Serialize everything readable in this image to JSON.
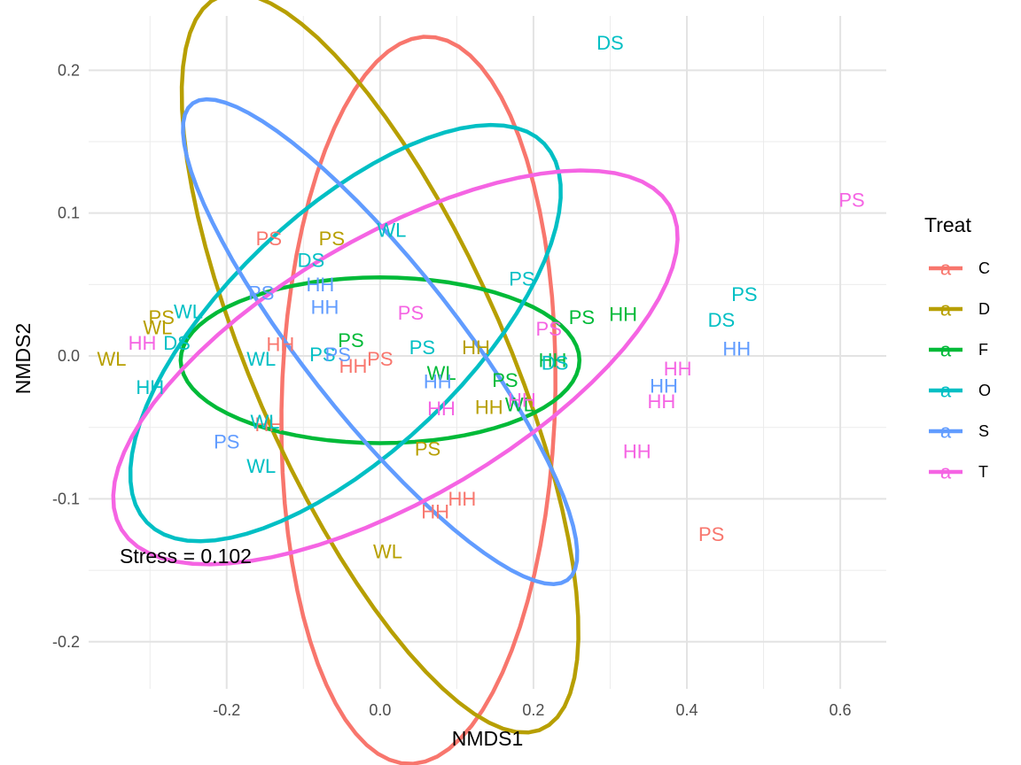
{
  "chart_data": {
    "type": "scatter",
    "xlabel": "NMDS1",
    "ylabel": "NMDS2",
    "xlim": [
      -0.38,
      0.66
    ],
    "ylim": [
      -0.233,
      0.238
    ],
    "x_ticks": [
      -0.2,
      0.0,
      0.2,
      0.4,
      0.6
    ],
    "x_tick_labels": [
      "-0.2",
      "0.0",
      "0.2",
      "0.4",
      "0.6"
    ],
    "y_ticks": [
      -0.2,
      -0.1,
      0.0,
      0.1,
      0.2
    ],
    "y_tick_labels": [
      "-0.2",
      "-0.1",
      "0.0",
      "0.1",
      "0.2"
    ],
    "grid": true,
    "annotation": "Stress = 0.102",
    "legend": {
      "title": "Treat",
      "position": "right",
      "key_glyph": "a",
      "entries": [
        "C",
        "D",
        "F",
        "O",
        "S",
        "T"
      ]
    },
    "colors": {
      "C": "#F8766D",
      "D": "#B79F00",
      "F": "#00BA38",
      "O": "#00BFC4",
      "S": "#619CFF",
      "T": "#F564E3"
    },
    "ellipses": [
      {
        "group": "C",
        "cx": 0.05,
        "cy": -0.031,
        "rx": 0.255,
        "ry": 0.178,
        "angle_deg": 85
      },
      {
        "group": "D",
        "cx": 0.0,
        "cy": -0.005,
        "rx": 0.34,
        "ry": 0.135,
        "angle_deg": -45
      },
      {
        "group": "F",
        "cx": 0.0,
        "cy": -0.003,
        "rx": 0.26,
        "ry": 0.058,
        "angle_deg": 0
      },
      {
        "group": "O",
        "cx": -0.045,
        "cy": 0.016,
        "rx": 0.3,
        "ry": 0.1,
        "angle_deg": 22
      },
      {
        "group": "S",
        "cx": 0.0,
        "cy": 0.01,
        "rx": 0.3,
        "ry": 0.07,
        "angle_deg": -32
      },
      {
        "group": "T",
        "cx": 0.02,
        "cy": -0.008,
        "rx": 0.38,
        "ry": 0.1,
        "angle_deg": 15
      }
    ],
    "series": [
      {
        "name": "C",
        "points": [
          {
            "x": -0.145,
            "y": 0.082,
            "label": "PS"
          },
          {
            "x": -0.13,
            "y": 0.008,
            "label": "HH"
          },
          {
            "x": -0.035,
            "y": -0.007,
            "label": "HH"
          },
          {
            "x": 0.0,
            "y": -0.002,
            "label": "PS"
          },
          {
            "x": -0.145,
            "y": -0.048,
            "label": "HH"
          },
          {
            "x": 0.107,
            "y": -0.1,
            "label": "HH"
          },
          {
            "x": 0.072,
            "y": -0.109,
            "label": "HH"
          },
          {
            "x": 0.432,
            "y": -0.125,
            "label": "PS"
          }
        ]
      },
      {
        "name": "D",
        "points": [
          {
            "x": -0.063,
            "y": 0.082,
            "label": "PS"
          },
          {
            "x": -0.285,
            "y": 0.027,
            "label": "PS"
          },
          {
            "x": -0.29,
            "y": 0.02,
            "label": "WL"
          },
          {
            "x": -0.35,
            "y": -0.002,
            "label": "WL"
          },
          {
            "x": 0.125,
            "y": 0.006,
            "label": "HH"
          },
          {
            "x": 0.142,
            "y": -0.036,
            "label": "HH"
          },
          {
            "x": 0.062,
            "y": -0.065,
            "label": "PS"
          },
          {
            "x": 0.01,
            "y": -0.137,
            "label": "WL"
          }
        ]
      },
      {
        "name": "F",
        "points": [
          {
            "x": -0.038,
            "y": 0.011,
            "label": "PS"
          },
          {
            "x": 0.08,
            "y": -0.012,
            "label": "WL"
          },
          {
            "x": 0.163,
            "y": -0.017,
            "label": "PS"
          },
          {
            "x": 0.263,
            "y": 0.027,
            "label": "PS"
          },
          {
            "x": 0.317,
            "y": 0.029,
            "label": "HH"
          },
          {
            "x": 0.225,
            "y": -0.003,
            "label": "HH"
          },
          {
            "x": 0.182,
            "y": -0.034,
            "label": "WL"
          }
        ]
      },
      {
        "name": "O",
        "points": [
          {
            "x": 0.3,
            "y": 0.219,
            "label": "DS"
          },
          {
            "x": 0.015,
            "y": 0.088,
            "label": "WL"
          },
          {
            "x": -0.09,
            "y": 0.067,
            "label": "DS"
          },
          {
            "x": 0.185,
            "y": 0.054,
            "label": "PS"
          },
          {
            "x": -0.25,
            "y": 0.031,
            "label": "WL"
          },
          {
            "x": -0.265,
            "y": 0.009,
            "label": "DS"
          },
          {
            "x": 0.055,
            "y": 0.006,
            "label": "PS"
          },
          {
            "x": -0.075,
            "y": 0.001,
            "label": "PS"
          },
          {
            "x": -0.155,
            "y": -0.002,
            "label": "WL"
          },
          {
            "x": -0.3,
            "y": -0.022,
            "label": "HH"
          },
          {
            "x": -0.15,
            "y": -0.046,
            "label": "WL"
          },
          {
            "x": -0.155,
            "y": -0.077,
            "label": "WL"
          },
          {
            "x": 0.475,
            "y": 0.043,
            "label": "PS"
          },
          {
            "x": 0.445,
            "y": 0.025,
            "label": "DS"
          },
          {
            "x": 0.228,
            "y": -0.005,
            "label": "DS"
          }
        ]
      },
      {
        "name": "S",
        "points": [
          {
            "x": -0.078,
            "y": 0.05,
            "label": "HH"
          },
          {
            "x": -0.155,
            "y": 0.044,
            "label": "PS"
          },
          {
            "x": -0.072,
            "y": 0.034,
            "label": "HH"
          },
          {
            "x": -0.055,
            "y": 0.001,
            "label": "PS"
          },
          {
            "x": 0.075,
            "y": -0.018,
            "label": "HH"
          },
          {
            "x": -0.2,
            "y": -0.06,
            "label": "PS"
          },
          {
            "x": 0.37,
            "y": -0.021,
            "label": "HH"
          },
          {
            "x": 0.465,
            "y": 0.005,
            "label": "HH"
          }
        ]
      },
      {
        "name": "T",
        "points": [
          {
            "x": 0.615,
            "y": 0.109,
            "label": "PS"
          },
          {
            "x": 0.04,
            "y": 0.03,
            "label": "PS"
          },
          {
            "x": 0.22,
            "y": 0.019,
            "label": "PS"
          },
          {
            "x": -0.31,
            "y": 0.009,
            "label": "HH"
          },
          {
            "x": 0.388,
            "y": -0.009,
            "label": "HH"
          },
          {
            "x": 0.367,
            "y": -0.032,
            "label": "HH"
          },
          {
            "x": 0.08,
            "y": -0.037,
            "label": "HH"
          },
          {
            "x": 0.185,
            "y": -0.031,
            "label": "HH"
          },
          {
            "x": 0.335,
            "y": -0.067,
            "label": "HH"
          }
        ]
      }
    ]
  }
}
